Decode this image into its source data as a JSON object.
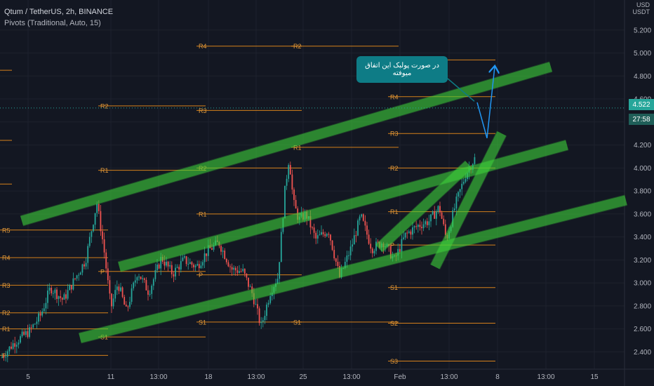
{
  "header": {
    "symbol_line": "Qtum / TetherUS, 2h, BINANCE",
    "indicator_line": "Pivots (Traditional, Auto, 15)"
  },
  "currency_label": [
    "USD",
    "USDT"
  ],
  "annotation_text": "در صورت پولبک این اتفاق میوفته",
  "price_tags": [
    {
      "label": "4.522",
      "color": "#26a69a"
    },
    {
      "label": "27:58",
      "color": "#1f5e58"
    }
  ],
  "colors": {
    "background": "#131722",
    "grid": "#1e222d",
    "pivot_line": "#f7931a",
    "pivot_label": "#e39a3a",
    "candle_up": "#26a69a",
    "candle_down": "#ef5350",
    "channel": "#3fd43a",
    "arrow": "#2196f3",
    "axis_text": "#b2b5be"
  },
  "chart_data": {
    "type": "candlestick",
    "title": "Qtum / TetherUS, 2h, BINANCE",
    "indicator": "Pivots (Traditional, Auto, 15)",
    "y_axis": {
      "ticks": [
        "5.200",
        "5.000",
        "4.800",
        "4.600",
        "4.400",
        "4.200",
        "4.000",
        "3.800",
        "3.600",
        "3.400",
        "3.200",
        "3.000",
        "2.800",
        "2.600",
        "2.400"
      ],
      "ylim": [
        2.25,
        5.4
      ],
      "currency": "USDT"
    },
    "x_axis": {
      "ticks": [
        "5",
        "11",
        "13:00",
        "18",
        "13:00",
        "25",
        "13:00",
        "Feb",
        "13:00",
        "8",
        "13:00",
        "15"
      ],
      "label_x": [
        40,
        158,
        226,
        297,
        365,
        432,
        501,
        570,
        640,
        709,
        778,
        847
      ]
    },
    "last_price": 4.522,
    "countdown": "27:58",
    "pivot_sets": [
      {
        "x0": 0,
        "x1": 17,
        "levels": [
          {
            "name": "",
            "v": 4.85
          },
          {
            "name": "",
            "v": 4.24
          },
          {
            "name": "",
            "v": 3.86
          }
        ]
      },
      {
        "x0": 0,
        "x1": 154,
        "levels": [
          {
            "name": "R5",
            "v": 3.46
          },
          {
            "name": "R4",
            "v": 3.22
          },
          {
            "name": "R3",
            "v": 2.98
          },
          {
            "name": "R2",
            "v": 2.74
          },
          {
            "name": "R1",
            "v": 2.6
          },
          {
            "name": "P",
            "v": 2.37
          }
        ]
      },
      {
        "x0": 140,
        "x1": 293,
        "levels": [
          {
            "name": "R2",
            "v": 4.54
          },
          {
            "name": "R1",
            "v": 3.98
          },
          {
            "name": "P",
            "v": 3.1
          },
          {
            "name": "S1",
            "v": 2.53
          }
        ]
      },
      {
        "x0": 280,
        "x1": 430,
        "levels": [
          {
            "name": "R4",
            "v": 5.06
          },
          {
            "name": "R3",
            "v": 4.5
          },
          {
            "name": "R2",
            "v": 4.0
          },
          {
            "name": "R1",
            "v": 3.6
          },
          {
            "name": "P",
            "v": 3.07
          },
          {
            "name": "S1",
            "v": 2.66
          }
        ]
      },
      {
        "x0": 415,
        "x1": 568,
        "levels": [
          {
            "name": "R2",
            "v": 5.06
          },
          {
            "name": "R1",
            "v": 4.18
          },
          {
            "name": "S1",
            "v": 2.66
          }
        ]
      },
      {
        "x0": 553,
        "x1": 706,
        "levels": [
          {
            "name": "R5",
            "v": 4.94
          },
          {
            "name": "R4",
            "v": 4.62
          },
          {
            "name": "R3",
            "v": 4.3
          },
          {
            "name": "R2",
            "v": 4.0
          },
          {
            "name": "R1",
            "v": 3.62
          },
          {
            "name": "P",
            "v": 3.33
          },
          {
            "name": "S1",
            "v": 2.96
          },
          {
            "name": "S2",
            "v": 2.65
          },
          {
            "name": "S3",
            "v": 2.32
          }
        ]
      }
    ],
    "channels": [
      {
        "name": "upper channel",
        "from": [
          31,
          3.54
        ],
        "to": [
          785,
          4.88
        ]
      },
      {
        "name": "middle channel",
        "from": [
          170,
          3.14
        ],
        "to": [
          808,
          4.2
        ]
      },
      {
        "name": "lower channel",
        "from": [
          114,
          2.52
        ],
        "to": [
          892,
          3.72
        ]
      },
      {
        "name": "trend wedge",
        "from": [
          620,
          3.14
        ],
        "to": [
          715,
          4.3
        ]
      },
      {
        "name": "trend line",
        "from": [
          540,
          3.3
        ],
        "to": [
          668,
          4.03
        ]
      }
    ],
    "arrows": [
      {
        "from": [
          680,
          4.57
        ],
        "to": [
          694,
          4.26
        ],
        "label": "drop"
      },
      {
        "from": [
          694,
          4.26
        ],
        "to": [
          705,
          4.88
        ],
        "label": "rise"
      }
    ],
    "price_path": [
      [
        2,
        2.35
      ],
      [
        20,
        2.48
      ],
      [
        42,
        2.58
      ],
      [
        58,
        2.72
      ],
      [
        72,
        2.96
      ],
      [
        90,
        2.85
      ],
      [
        108,
        3.05
      ],
      [
        122,
        3.2
      ],
      [
        138,
        3.7
      ],
      [
        148,
        3.3
      ],
      [
        158,
        2.78
      ],
      [
        168,
        3.0
      ],
      [
        180,
        2.75
      ],
      [
        196,
        3.1
      ],
      [
        212,
        2.92
      ],
      [
        230,
        3.22
      ],
      [
        246,
        3.08
      ],
      [
        262,
        3.2
      ],
      [
        280,
        3.14
      ],
      [
        296,
        3.28
      ],
      [
        312,
        3.35
      ],
      [
        330,
        3.12
      ],
      [
        346,
        3.1
      ],
      [
        360,
        2.9
      ],
      [
        372,
        2.62
      ],
      [
        386,
        2.94
      ],
      [
        396,
        3.05
      ],
      [
        406,
        3.8
      ],
      [
        412,
        4.1
      ],
      [
        418,
        3.7
      ],
      [
        426,
        3.55
      ],
      [
        436,
        3.6
      ],
      [
        450,
        3.38
      ],
      [
        468,
        3.46
      ],
      [
        484,
        3.05
      ],
      [
        500,
        3.3
      ],
      [
        514,
        3.58
      ],
      [
        530,
        3.3
      ],
      [
        546,
        3.36
      ],
      [
        562,
        3.2
      ],
      [
        578,
        3.42
      ],
      [
        596,
        3.5
      ],
      [
        612,
        3.54
      ],
      [
        626,
        3.66
      ],
      [
        636,
        3.38
      ],
      [
        650,
        3.7
      ],
      [
        664,
        3.95
      ],
      [
        676,
        4.08
      ]
    ]
  }
}
